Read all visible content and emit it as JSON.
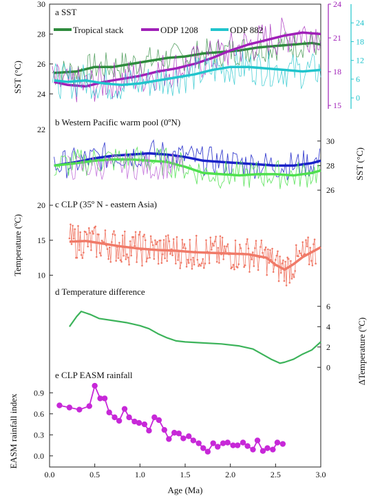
{
  "figure": {
    "xlabel": "Age (Ma)",
    "x_ticks": [
      "0.0",
      "0.5",
      "1.0",
      "1.5",
      "2.0",
      "2.5",
      "3.0"
    ],
    "xlim": [
      0,
      3.0
    ]
  },
  "chart_data": [
    {
      "id": "a",
      "type": "line",
      "title": "a  SST",
      "ylabel": "SST (°C)",
      "ylim": [
        23,
        30
      ],
      "yticks": [
        24,
        26,
        28,
        30
      ],
      "legend": [
        "Tropical  stack",
        "ODP 1208",
        "ODP 882"
      ],
      "right_axes": [
        {
          "series": "ODP 1208",
          "color": "#a020b8",
          "ylim": [
            14.7,
            24
          ],
          "ticks": [
            15,
            18,
            21,
            24
          ]
        },
        {
          "series": "ODP 882",
          "color": "#21c4cc",
          "ylim": [
            -3.5,
            30
          ],
          "ticks": [
            0,
            6,
            12,
            18,
            24
          ]
        }
      ],
      "series": [
        {
          "name": "Tropical  stack",
          "color": "#2e8b3d",
          "x": [
            0.05,
            0.3,
            0.5,
            0.7,
            0.9,
            1.1,
            1.3,
            1.5,
            1.7,
            1.9,
            2.1,
            2.3,
            2.5,
            2.7,
            2.9,
            3.0
          ],
          "y": [
            25.4,
            25.5,
            25.8,
            25.8,
            26.0,
            26.2,
            26.4,
            26.5,
            26.7,
            26.8,
            26.9,
            27.1,
            27.2,
            27.3,
            27.4,
            27.3
          ]
        },
        {
          "name": "ODP 1208",
          "color": "#a020b8",
          "x": [
            0.05,
            0.2,
            0.4,
            0.6,
            0.8,
            1.0,
            1.2,
            1.4,
            1.6,
            1.8,
            2.0,
            2.2,
            2.4,
            2.6,
            2.8,
            3.0
          ],
          "y": [
            24.8,
            24.6,
            24.5,
            24.8,
            25.0,
            25.2,
            25.5,
            25.7,
            26.0,
            26.4,
            26.9,
            27.3,
            27.6,
            27.9,
            28.1,
            28.0
          ]
        },
        {
          "name": "ODP 882",
          "color": "#21c4cc",
          "x": [
            0.05,
            0.2,
            0.4,
            0.6,
            0.8,
            1.0,
            1.2,
            1.4,
            1.6,
            1.8,
            2.0,
            2.2,
            2.4,
            2.6,
            2.8,
            3.0
          ],
          "y": [
            24.9,
            24.8,
            24.9,
            24.7,
            24.6,
            24.7,
            24.9,
            25.1,
            25.3,
            25.6,
            25.8,
            25.8,
            25.7,
            25.6,
            25.5,
            25.6
          ]
        }
      ]
    },
    {
      "id": "b",
      "type": "line",
      "title": "b  Western Pacific warm pool (0ºN)",
      "ylabel": "SST (°C)",
      "ylim": [
        25.5,
        31.5
      ],
      "right_ticks": [
        26,
        28,
        30
      ],
      "left_ticks": [
        22
      ],
      "series": [
        {
          "color": "#1a22c8",
          "x": [
            0.05,
            0.3,
            0.5,
            0.7,
            0.9,
            1.1,
            1.3,
            1.5,
            1.7,
            1.9,
            2.1,
            2.3,
            2.5,
            2.7,
            2.9,
            3.0
          ],
          "y": [
            28.0,
            28.3,
            28.6,
            28.8,
            28.9,
            29.0,
            28.9,
            28.7,
            28.4,
            28.3,
            28.2,
            28.1,
            28.0,
            28.0,
            28.2,
            28.4
          ]
        },
        {
          "color": "#4fe04f",
          "x": [
            0.05,
            0.3,
            0.5,
            0.7,
            0.9,
            1.1,
            1.3,
            1.5,
            1.7,
            1.9,
            2.1,
            2.3,
            2.5,
            2.7,
            2.9,
            3.0
          ],
          "y": [
            28.0,
            28.2,
            28.4,
            28.5,
            28.5,
            28.4,
            28.3,
            27.9,
            27.4,
            27.3,
            27.2,
            27.3,
            27.3,
            27.2,
            27.4,
            27.6
          ]
        },
        {
          "color": "#c06ad8",
          "x": [
            0.2,
            0.5,
            0.8,
            1.1,
            1.4,
            1.5
          ],
          "y": [
            27.8,
            27.9,
            28.0,
            27.9,
            28.0,
            27.9
          ]
        }
      ]
    },
    {
      "id": "c",
      "type": "line",
      "title": "c  CLP (35º N - eastern Asia)",
      "ylabel": "Temperature (ºC)",
      "ylim": [
        7.5,
        20
      ],
      "yticks": [
        10,
        15,
        20
      ],
      "series": [
        {
          "color": "#f07a68",
          "x": [
            0.22,
            0.4,
            0.6,
            0.8,
            1.0,
            1.2,
            1.4,
            1.6,
            1.8,
            2.0,
            2.2,
            2.4,
            2.5,
            2.6,
            2.7,
            2.8,
            3.0
          ],
          "y": [
            14.8,
            14.9,
            14.5,
            14.1,
            13.8,
            13.6,
            13.5,
            13.3,
            13.2,
            13.1,
            13.0,
            12.5,
            11.5,
            10.8,
            11.6,
            12.6,
            14.0
          ]
        }
      ]
    },
    {
      "id": "d",
      "type": "line",
      "title": "d  Temperature difference",
      "ylabel": "ΔTemperature (ºC)",
      "ylim": [
        -1,
        7
      ],
      "yticks": [
        0,
        2,
        4,
        6
      ],
      "series": [
        {
          "color": "#3cb35a",
          "x": [
            0.22,
            0.3,
            0.35,
            0.45,
            0.55,
            0.7,
            0.85,
            1.0,
            1.1,
            1.2,
            1.3,
            1.4,
            1.5,
            1.7,
            1.9,
            2.1,
            2.25,
            2.35,
            2.45,
            2.55,
            2.6,
            2.7,
            2.8,
            2.9,
            3.0
          ],
          "y": [
            4.0,
            5.0,
            5.5,
            5.2,
            4.8,
            4.6,
            4.4,
            4.1,
            3.8,
            3.3,
            2.9,
            2.6,
            2.5,
            2.4,
            2.3,
            2.1,
            1.8,
            1.3,
            0.8,
            0.4,
            0.5,
            0.8,
            1.3,
            1.7,
            2.5
          ]
        }
      ]
    },
    {
      "id": "e",
      "type": "scatter",
      "title": "e  CLP EASM rainfall",
      "ylabel": "EASM rainfall index",
      "ylim": [
        -0.1,
        1.05
      ],
      "yticks": [
        "0.0",
        "0.3",
        "0.6",
        "0.9"
      ],
      "series": [
        {
          "color": "#c728d8",
          "x": [
            0.11,
            0.22,
            0.33,
            0.44,
            0.5,
            0.56,
            0.61,
            0.66,
            0.72,
            0.77,
            0.83,
            0.88,
            0.94,
            0.99,
            1.05,
            1.1,
            1.16,
            1.21,
            1.27,
            1.32,
            1.38,
            1.43,
            1.48,
            1.54,
            1.59,
            1.65,
            1.7,
            1.75,
            1.81,
            1.86,
            1.92,
            1.97,
            2.03,
            2.08,
            2.14,
            2.19,
            2.25,
            2.3,
            2.36,
            2.41,
            2.47,
            2.52,
            2.58
          ],
          "y": [
            0.72,
            0.69,
            0.66,
            0.71,
            1.0,
            0.82,
            0.82,
            0.62,
            0.55,
            0.5,
            0.67,
            0.55,
            0.49,
            0.47,
            0.45,
            0.36,
            0.55,
            0.51,
            0.37,
            0.24,
            0.33,
            0.32,
            0.25,
            0.28,
            0.22,
            0.18,
            0.11,
            0.06,
            0.18,
            0.13,
            0.18,
            0.19,
            0.15,
            0.15,
            0.19,
            0.14,
            0.09,
            0.22,
            0.07,
            0.11,
            0.09,
            0.19,
            0.17
          ]
        }
      ]
    }
  ]
}
